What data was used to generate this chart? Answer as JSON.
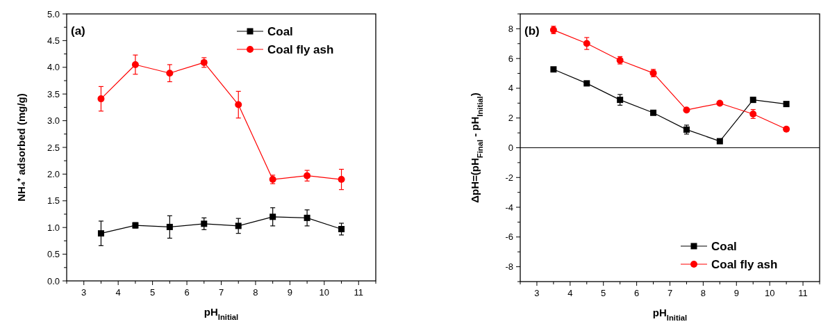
{
  "chart_data": [
    {
      "type": "line",
      "xlabel": "pH$_{Initial}$",
      "ylabel": "NH₄⁺ adsorbed (mg/g)",
      "annotations": [
        "(a)"
      ],
      "x": [
        3.5,
        4.5,
        5.5,
        6.5,
        7.5,
        8.5,
        9.5,
        10.5
      ],
      "xlim": [
        2.5,
        11.5
      ],
      "xticks": [
        {
          "value": 2.5,
          "label": null
        },
        3,
        {
          "value": 3.5,
          "label": null
        },
        4,
        {
          "value": 4.5,
          "label": null
        },
        5,
        {
          "value": 5.5,
          "label": null
        },
        6,
        {
          "value": 6.5,
          "label": null
        },
        7,
        {
          "value": 7.5,
          "label": null
        },
        8,
        {
          "value": 8.5,
          "label": null
        },
        9,
        {
          "value": 9.5,
          "label": null
        },
        10,
        {
          "value": 10.5,
          "label": null
        },
        11,
        {
          "value": 11.5,
          "label": null
        }
      ],
      "ylim": [
        0,
        5
      ],
      "yticks": [
        {
          "value": 0,
          "label": "0.0"
        },
        {
          "value": 0.25,
          "label": null
        },
        {
          "value": 0.5,
          "label": "0.5"
        },
        {
          "value": 0.75,
          "label": null
        },
        {
          "value": 1,
          "label": "1.0"
        },
        {
          "value": 1.25,
          "label": null
        },
        {
          "value": 1.5,
          "label": "1.5"
        },
        {
          "value": 1.75,
          "label": null
        },
        {
          "value": 2,
          "label": "2.0"
        },
        {
          "value": 2.25,
          "label": null
        },
        {
          "value": 2.5,
          "label": "2.5"
        },
        {
          "value": 2.75,
          "label": null
        },
        {
          "value": 3,
          "label": "3.0"
        },
        {
          "value": 3.25,
          "label": null
        },
        {
          "value": 3.5,
          "label": "3.5"
        },
        {
          "value": 3.75,
          "label": null
        },
        {
          "value": 4,
          "label": "4.0"
        },
        {
          "value": 4.25,
          "label": null
        },
        {
          "value": 4.5,
          "label": "4.5"
        },
        {
          "value": 4.75,
          "label": null
        },
        {
          "value": 5,
          "label": "5.0"
        }
      ],
      "legend": "top right",
      "series": [
        {
          "name": "Coal",
          "color": "#000000",
          "marker": "square",
          "values": [
            0.89,
            1.04,
            1.01,
            1.07,
            1.03,
            1.2,
            1.18,
            0.97
          ],
          "errors": [
            0.23,
            0.05,
            0.21,
            0.11,
            0.14,
            0.17,
            0.15,
            0.11
          ]
        },
        {
          "name": "Coal fly ash",
          "color": "#ff0000",
          "marker": "circle",
          "values": [
            3.41,
            4.05,
            3.89,
            4.09,
            3.3,
            1.9,
            1.97,
            1.9
          ],
          "errors": [
            0.23,
            0.18,
            0.16,
            0.09,
            0.25,
            0.08,
            0.1,
            0.19
          ]
        }
      ]
    },
    {
      "type": "line",
      "xlabel": "pH$_{Initial}$",
      "ylabel": "ΔpH=(pH$_{Final}$ - pH$_{Initial}$)",
      "annotations": [
        "(b)"
      ],
      "x": [
        3.5,
        4.5,
        5.5,
        6.5,
        7.5,
        8.5,
        9.5,
        10.5
      ],
      "xlim": [
        2.5,
        11.5
      ],
      "xticks": [
        {
          "value": 2.5,
          "label": null
        },
        3,
        {
          "value": 3.5,
          "label": null
        },
        4,
        {
          "value": 4.5,
          "label": null
        },
        5,
        {
          "value": 5.5,
          "label": null
        },
        6,
        {
          "value": 6.5,
          "label": null
        },
        7,
        {
          "value": 7.5,
          "label": null
        },
        8,
        {
          "value": 8.5,
          "label": null
        },
        9,
        {
          "value": 9.5,
          "label": null
        },
        10,
        {
          "value": 10.5,
          "label": null
        },
        11,
        {
          "value": 11.5,
          "label": null
        }
      ],
      "ylim": [
        -9,
        9
      ],
      "yticks": [
        {
          "value": -9,
          "label": null
        },
        -8,
        {
          "value": -7,
          "label": null
        },
        -6,
        {
          "value": -5,
          "label": null
        },
        -4,
        {
          "value": -3,
          "label": null
        },
        -2,
        {
          "value": -1,
          "label": null
        },
        0,
        {
          "value": 1,
          "label": null
        },
        2,
        {
          "value": 3,
          "label": null
        },
        4,
        {
          "value": 5,
          "label": null
        },
        6,
        {
          "value": 7,
          "label": null
        },
        8,
        {
          "value": 9,
          "label": null
        }
      ],
      "ref_lines": [
        {
          "axis": "y",
          "value": 0,
          "color": "#000000"
        }
      ],
      "legend": "bottom right",
      "series": [
        {
          "name": "Coal",
          "color": "#000000",
          "marker": "square",
          "values": [
            5.27,
            4.33,
            3.22,
            2.35,
            1.22,
            0.44,
            3.22,
            2.94
          ],
          "errors": [
            0.15,
            null,
            0.36,
            null,
            0.3,
            0.15,
            0.15,
            null
          ]
        },
        {
          "name": "Coal fly ash",
          "color": "#ff0000",
          "marker": "circle",
          "values": [
            7.92,
            7.01,
            5.88,
            5.02,
            2.54,
            2.99,
            2.27,
            1.25
          ],
          "errors": [
            0.25,
            0.4,
            0.25,
            0.25,
            null,
            null,
            0.3,
            null
          ]
        }
      ]
    }
  ]
}
